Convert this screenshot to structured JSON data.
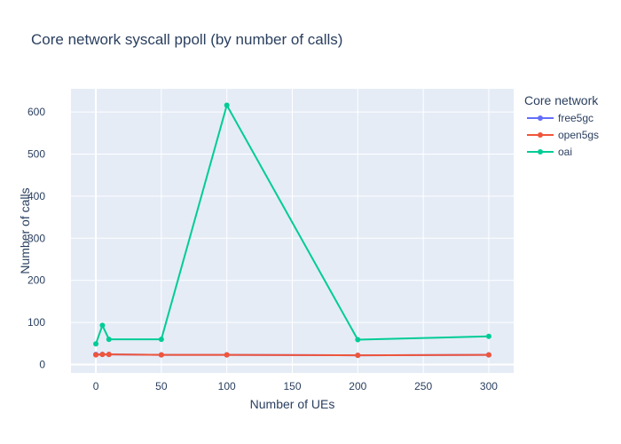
{
  "chart_data": {
    "type": "line",
    "title": "Core network syscall ppoll (by number of calls)",
    "xlabel": "Number of UEs",
    "ylabel": "Number of calls",
    "xlim": [
      -19,
      319
    ],
    "ylim": [
      -20,
      655
    ],
    "xticks": [
      0,
      50,
      100,
      150,
      200,
      250,
      300
    ],
    "yticks": [
      0,
      100,
      200,
      300,
      400,
      500,
      600
    ],
    "grid": true,
    "background": "#e5ecf6",
    "legend": {
      "title": "Core network",
      "position": "top-right-outside"
    },
    "series": [
      {
        "name": "free5gc",
        "color": "#636efa",
        "x": [
          0,
          5,
          10,
          50,
          100,
          200,
          300
        ],
        "y": [
          24,
          24,
          24,
          23,
          23,
          22,
          23
        ]
      },
      {
        "name": "open5gs",
        "color": "#ef553b",
        "x": [
          0,
          5,
          10,
          50,
          100,
          200,
          300
        ],
        "y": [
          23,
          24,
          24,
          23,
          23,
          22,
          23
        ]
      },
      {
        "name": "oai",
        "color": "#00cc96",
        "x": [
          0,
          5,
          10,
          50,
          100,
          200,
          300
        ],
        "y": [
          49,
          93,
          60,
          60,
          616,
          59,
          67
        ]
      }
    ]
  }
}
